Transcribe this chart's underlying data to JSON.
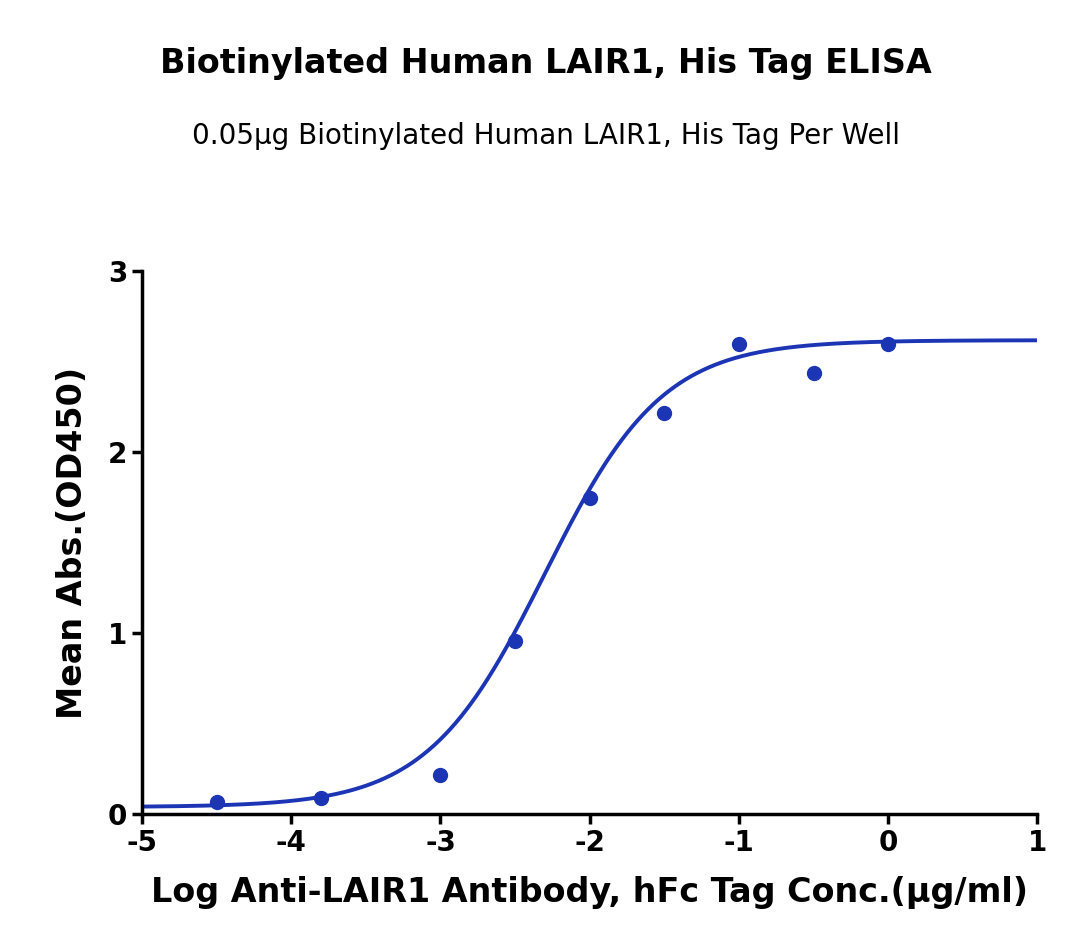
{
  "title_line1": "Biotinylated Human LAIR1, His Tag ELISA",
  "title_line2": "0.05μg Biotinylated Human LAIR1, His Tag Per Well",
  "xlabel": "Log Anti-LAIR1 Antibody, hFc Tag Conc.(μg/ml)",
  "ylabel": "Mean Abs.(OD450)",
  "xlim": [
    -5,
    1
  ],
  "ylim": [
    0,
    3
  ],
  "xticks": [
    -5,
    -4,
    -3,
    -2,
    -1,
    0,
    1
  ],
  "yticks": [
    0,
    1,
    2,
    3
  ],
  "curve_color": "#1c35b5",
  "dot_color": "#1c35b5",
  "dot_size": 100,
  "line_width": 2.8,
  "scatter_x": [
    -4.5,
    -3.8,
    -3.0,
    -2.5,
    -2.0,
    -1.5,
    -1.0,
    -0.5,
    0.0
  ],
  "scatter_y": [
    0.07,
    0.09,
    0.22,
    0.96,
    1.75,
    2.22,
    2.6,
    2.44,
    2.6
  ],
  "background_color": "#ffffff",
  "title_fontsize": 24,
  "subtitle_fontsize": 20,
  "axis_label_fontsize": 24,
  "tick_fontsize": 20
}
